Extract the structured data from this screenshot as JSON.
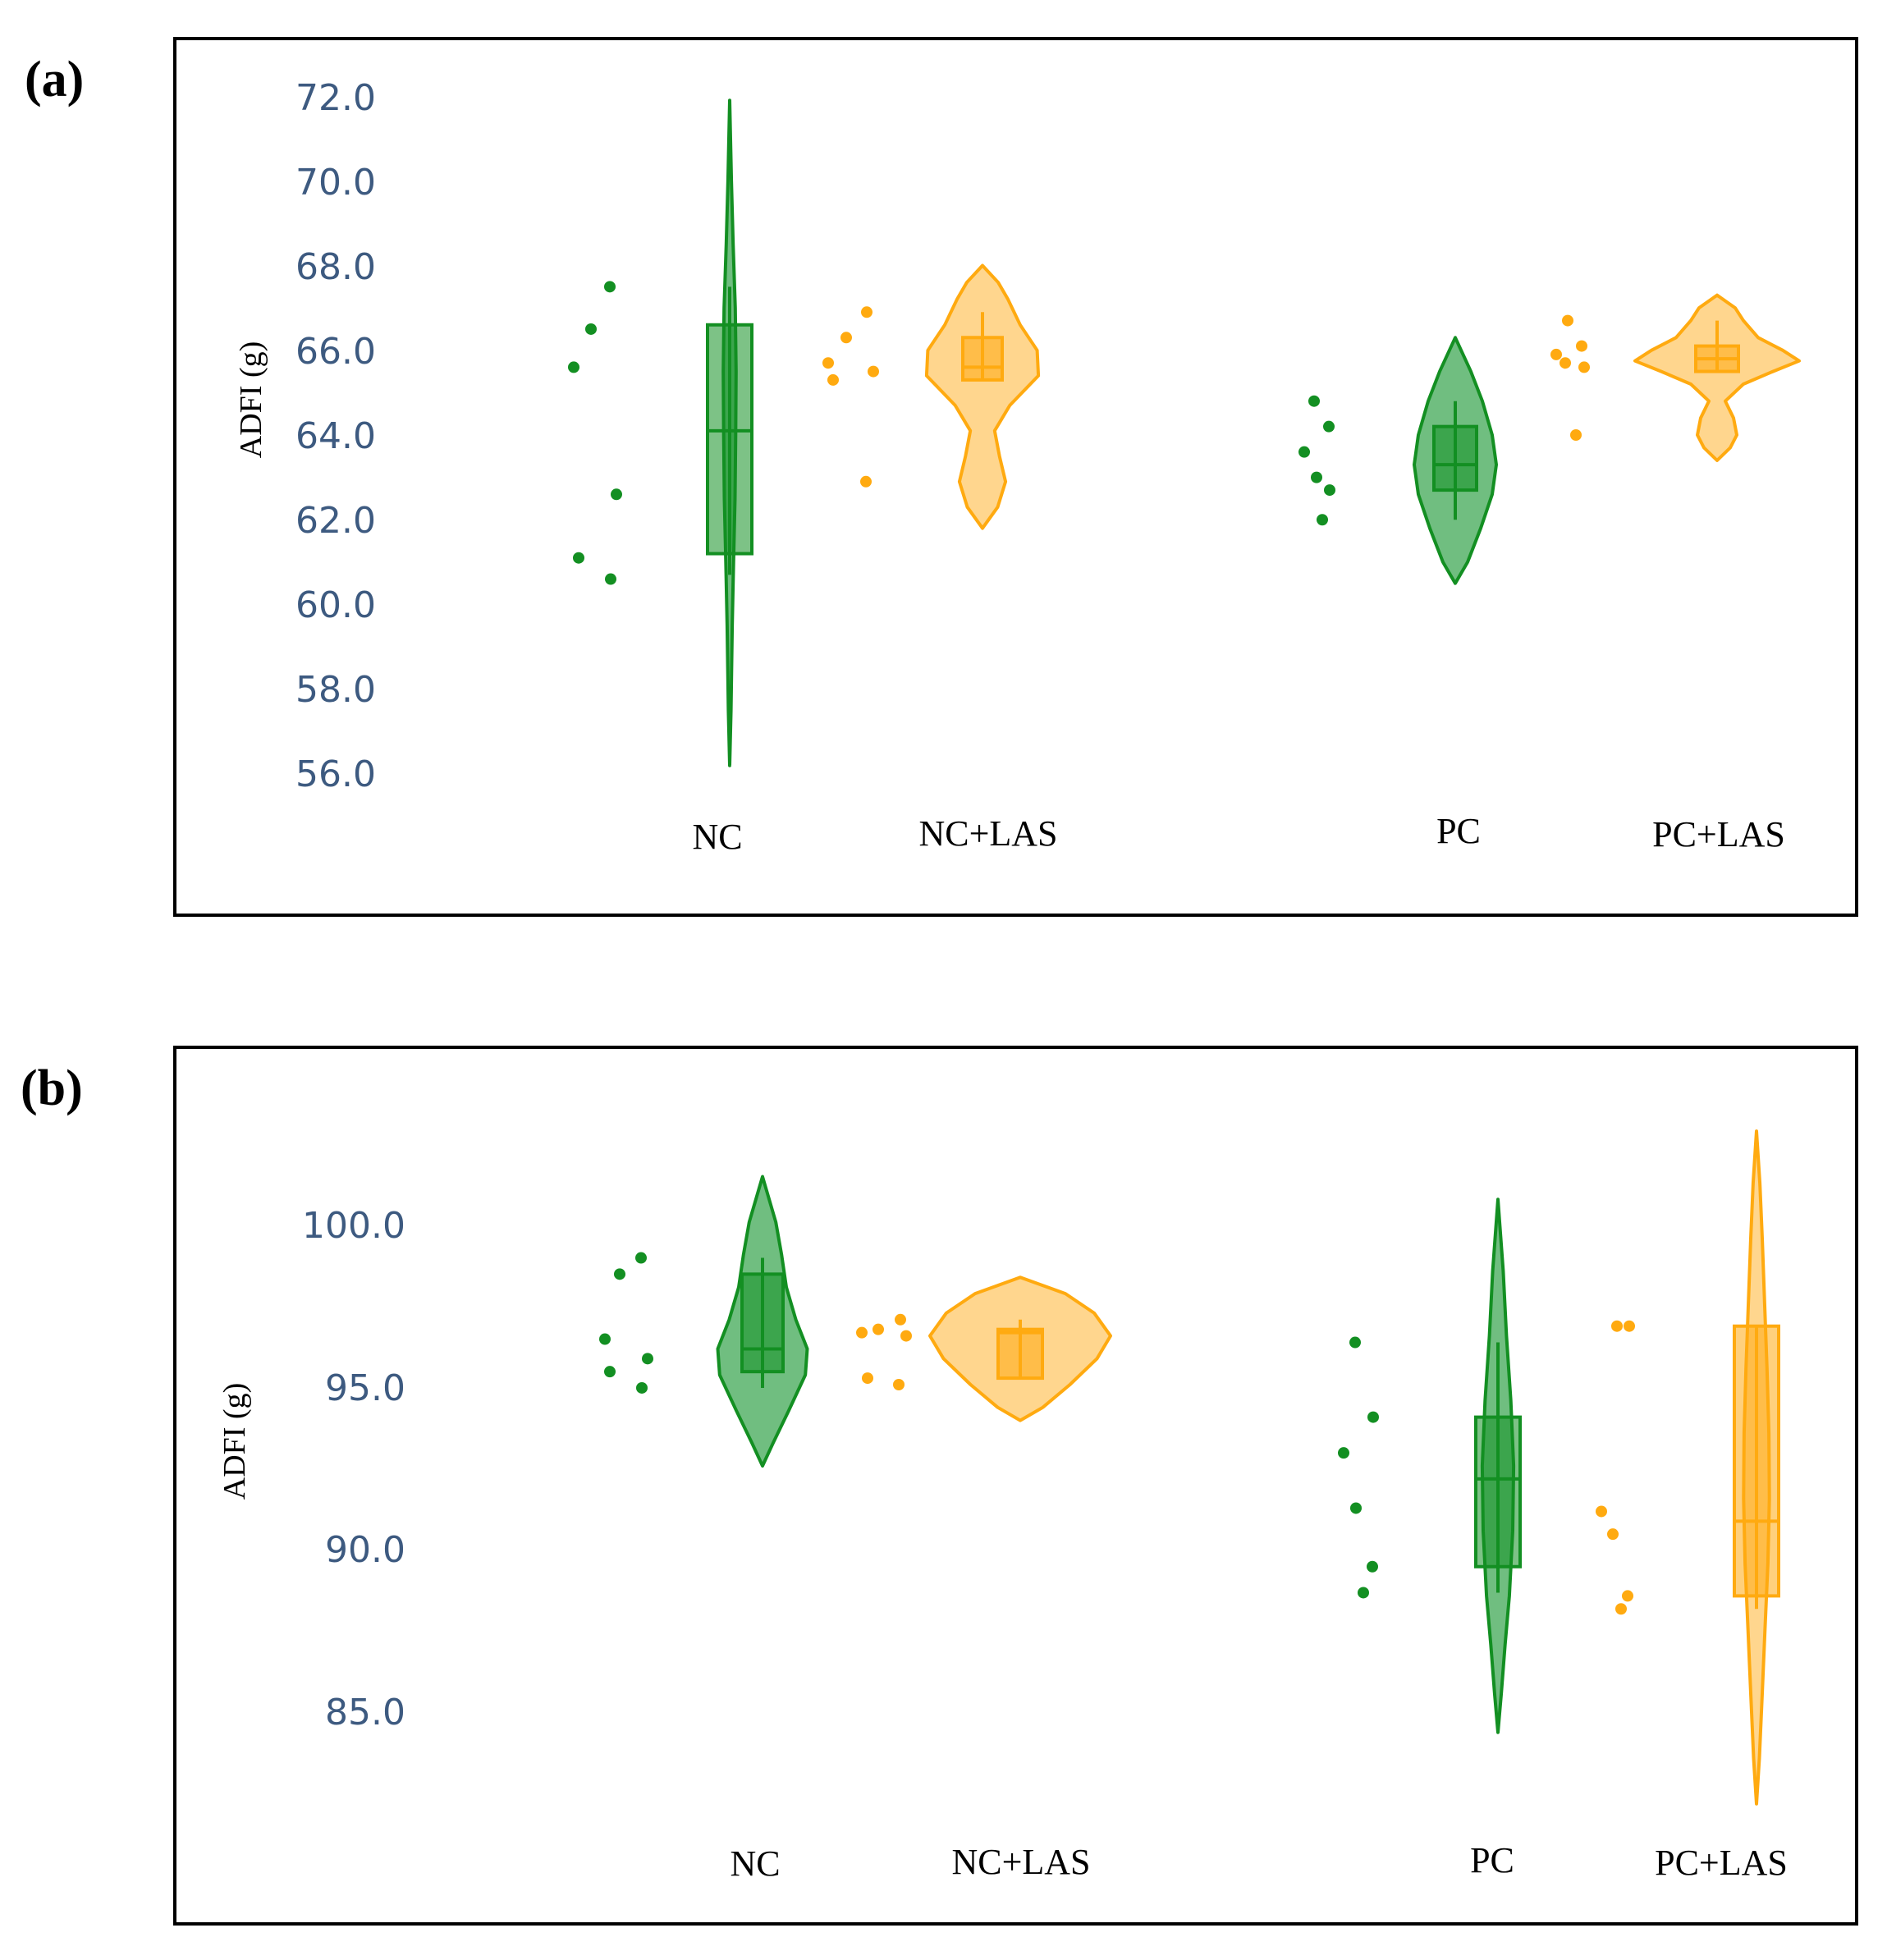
{
  "colors": {
    "green": "#138f22",
    "green_fill": "rgba(25,150,50,0.62)",
    "orange": "#ffaa10",
    "orange_fill": "rgba(255,180,50,0.55)",
    "tick": "#3d5a80"
  },
  "chart_data": [
    {
      "panel_label": "(a)",
      "type": "violin",
      "ylabel": "ADFI (g)",
      "yticks": [
        "72.0",
        "70.0",
        "68.0",
        "66.0",
        "64.0",
        "62.0",
        "60.0",
        "58.0",
        "56.0"
      ],
      "ylim": [
        56.0,
        72.0
      ],
      "categories": [
        "NC",
        "NC+LAS",
        "PC",
        "PC+LAS"
      ],
      "groups": [
        {
          "name": "NC",
          "color": "green",
          "points": [
            67.5,
            66.5,
            65.6,
            62.6,
            61.1,
            60.6
          ],
          "box": {
            "q1": 61.2,
            "median": 64.1,
            "q3": 66.6,
            "whisker_low": 60.7,
            "whisker_high": 67.5
          },
          "violin": {
            "min": 56.2,
            "max": 71.9,
            "profile": [
              [
                56.2,
                0
              ],
              [
                57.5,
                0.06
              ],
              [
                59.5,
                0.12
              ],
              [
                61,
                0.18
              ],
              [
                62.5,
                0.25
              ],
              [
                64,
                0.28
              ],
              [
                65.5,
                0.3
              ],
              [
                67,
                0.26
              ],
              [
                68.5,
                0.16
              ],
              [
                70,
                0.08
              ],
              [
                71.9,
                0
              ]
            ]
          }
        },
        {
          "name": "NC+LAS",
          "color": "orange",
          "points": [
            66.9,
            66.3,
            65.7,
            65.5,
            65.3,
            62.9
          ],
          "box": {
            "q1": 65.3,
            "median": 65.6,
            "q3": 66.3,
            "whisker_low": 65.3,
            "whisker_high": 66.9
          },
          "violin": {
            "min": 61.8,
            "max": 68.0,
            "profile": [
              [
                61.8,
                0
              ],
              [
                62.3,
                0.25
              ],
              [
                62.9,
                0.38
              ],
              [
                63.5,
                0.28
              ],
              [
                64.1,
                0.2
              ],
              [
                64.7,
                0.45
              ],
              [
                65.4,
                0.92
              ],
              [
                66,
                0.9
              ],
              [
                66.6,
                0.62
              ],
              [
                67.2,
                0.42
              ],
              [
                67.6,
                0.26
              ],
              [
                68,
                0
              ]
            ]
          }
        },
        {
          "name": "PC",
          "color": "green",
          "points": [
            64.8,
            64.2,
            63.6,
            63.0,
            62.7,
            62.0
          ],
          "box": {
            "q1": 62.7,
            "median": 63.3,
            "q3": 64.2,
            "whisker_low": 62.0,
            "whisker_high": 64.8
          },
          "violin": {
            "min": 60.5,
            "max": 66.3,
            "profile": [
              [
                60.5,
                0
              ],
              [
                61,
                0.3
              ],
              [
                61.8,
                0.62
              ],
              [
                62.6,
                0.9
              ],
              [
                63.3,
                1
              ],
              [
                64,
                0.9
              ],
              [
                64.8,
                0.66
              ],
              [
                65.5,
                0.38
              ],
              [
                66.3,
                0
              ]
            ]
          }
        },
        {
          "name": "PC+LAS",
          "color": "orange",
          "points": [
            66.7,
            66.1,
            65.9,
            65.7,
            65.6,
            64.0
          ],
          "box": {
            "q1": 65.5,
            "median": 65.8,
            "q3": 66.1,
            "whisker_low": 65.5,
            "whisker_high": 66.7
          },
          "violin": {
            "min": 63.4,
            "max": 67.3,
            "profile": [
              [
                63.4,
                0
              ],
              [
                63.7,
                0.16
              ],
              [
                64,
                0.24
              ],
              [
                64.4,
                0.2
              ],
              [
                64.8,
                0.1
              ],
              [
                65.2,
                0.32
              ],
              [
                65.5,
                0.68
              ],
              [
                65.75,
                1
              ],
              [
                66,
                0.8
              ],
              [
                66.3,
                0.5
              ],
              [
                66.7,
                0.32
              ],
              [
                67,
                0.22
              ],
              [
                67.3,
                0
              ]
            ]
          }
        }
      ]
    },
    {
      "panel_label": "(b)",
      "type": "violin",
      "ylabel": "ADFI (g)",
      "yticks": [
        "100.0",
        "95.0",
        "90.0",
        "85.0"
      ],
      "ylim": [
        85.0,
        100.0
      ],
      "categories": [
        "NC",
        "NC+LAS",
        "PC",
        "PC+LAS"
      ],
      "groups": [
        {
          "name": "NC",
          "color": "green",
          "points": [
            98.9,
            98.4,
            96.4,
            95.8,
            95.4,
            94.9
          ],
          "box": {
            "q1": 95.4,
            "median": 96.1,
            "q3": 98.4,
            "whisker_low": 94.9,
            "whisker_high": 98.9
          },
          "violin": {
            "min": 92.5,
            "max": 101.4,
            "profile": [
              [
                92.5,
                0
              ],
              [
                93.2,
                0.22
              ],
              [
                94.2,
                0.55
              ],
              [
                95.3,
                0.9
              ],
              [
                96.1,
                0.94
              ],
              [
                97,
                0.7
              ],
              [
                98,
                0.5
              ],
              [
                99,
                0.4
              ],
              [
                100,
                0.28
              ],
              [
                101.4,
                0
              ]
            ]
          }
        },
        {
          "name": "NC+LAS",
          "color": "orange",
          "points": [
            97.0,
            96.7,
            96.6,
            96.5,
            95.2,
            95.0
          ],
          "box": {
            "q1": 95.2,
            "median": 96.6,
            "q3": 96.7,
            "whisker_low": 95.2,
            "whisker_high": 97.0
          },
          "violin": {
            "min": 93.9,
            "max": 98.3,
            "profile": [
              [
                93.9,
                0
              ],
              [
                94.3,
                0.25
              ],
              [
                95,
                0.55
              ],
              [
                95.8,
                0.85
              ],
              [
                96.5,
                1
              ],
              [
                97.2,
                0.82
              ],
              [
                97.8,
                0.5
              ],
              [
                98.3,
                0
              ]
            ]
          }
        },
        {
          "name": "PC",
          "color": "green",
          "points": [
            96.3,
            94.0,
            92.9,
            91.2,
            89.4,
            88.6
          ],
          "box": {
            "q1": 89.4,
            "median": 92.1,
            "q3": 94.0,
            "whisker_low": 88.6,
            "whisker_high": 96.3
          },
          "violin": {
            "min": 84.3,
            "max": 100.7,
            "profile": [
              [
                84.3,
                0
              ],
              [
                85.5,
                0.07
              ],
              [
                87,
                0.15
              ],
              [
                88.5,
                0.24
              ],
              [
                90.5,
                0.31
              ],
              [
                92.5,
                0.33
              ],
              [
                94.5,
                0.27
              ],
              [
                96.5,
                0.18
              ],
              [
                98.5,
                0.11
              ],
              [
                100.7,
                0
              ]
            ]
          }
        },
        {
          "name": "PC+LAS",
          "color": "orange",
          "points": [
            96.8,
            96.8,
            91.1,
            90.4,
            88.5,
            88.1
          ],
          "box": {
            "q1": 88.5,
            "median": 90.8,
            "q3": 96.8,
            "whisker_low": 88.1,
            "whisker_high": 96.8
          },
          "violin": {
            "min": 82.1,
            "max": 102.8,
            "profile": [
              [
                82.1,
                0
              ],
              [
                83.5,
                0.06
              ],
              [
                85.5,
                0.12
              ],
              [
                87.5,
                0.18
              ],
              [
                89.5,
                0.24
              ],
              [
                91.5,
                0.27
              ],
              [
                93.5,
                0.26
              ],
              [
                95.5,
                0.22
              ],
              [
                97.5,
                0.17
              ],
              [
                99.5,
                0.12
              ],
              [
                101.2,
                0.07
              ],
              [
                102.8,
                0
              ]
            ]
          }
        }
      ]
    }
  ]
}
